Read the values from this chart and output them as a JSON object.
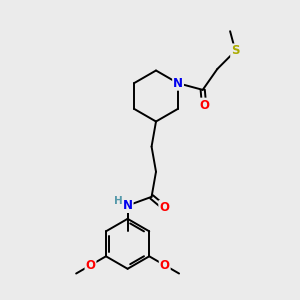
{
  "background_color": "#ebebeb",
  "atom_colors": {
    "C": "#000000",
    "N": "#0000ee",
    "O": "#ff0000",
    "S": "#aaaa00",
    "H": "#5599aa"
  },
  "bond_lw": 1.4,
  "font_size": 8.5
}
